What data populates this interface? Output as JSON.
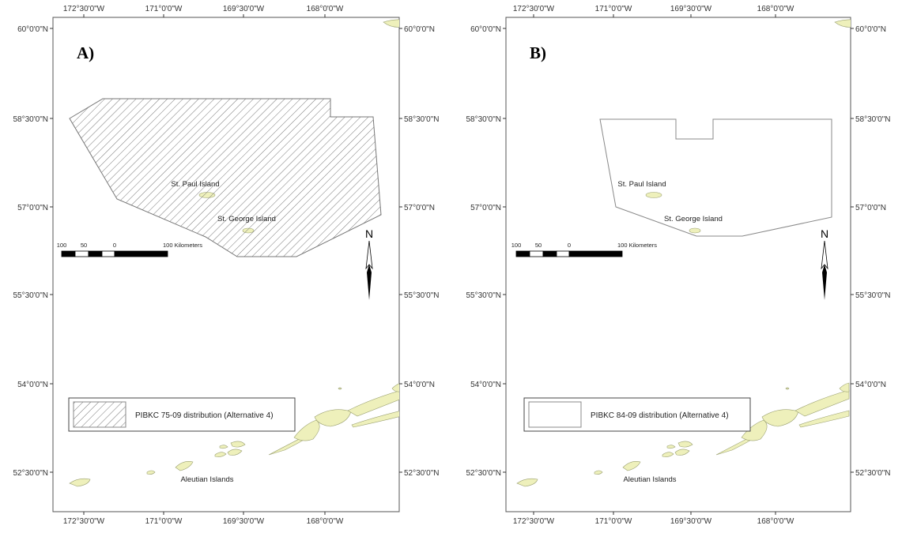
{
  "panels": [
    {
      "id": "a",
      "label": "A)",
      "legend_label": "PIBKC 75-09 distribution (Alternative 4)",
      "fill_style": "hatched"
    },
    {
      "id": "b",
      "label": "B)",
      "legend_label": "PIBKC 84-09 distribution (Alternative 4)",
      "fill_style": "outline"
    }
  ],
  "lon_ticks": [
    "172°30'0\"W",
    "171°0'0\"W",
    "169°30'0\"W",
    "168°0'0\"W"
  ],
  "lat_ticks": [
    "60°0'0\"N",
    "58°30'0\"N",
    "57°0'0\"N",
    "55°30'0\"N",
    "54°0'0\"N",
    "52°30'0\"N"
  ],
  "places": {
    "st_paul": "St. Paul Island",
    "st_george": "St. George Island",
    "aleutians": "Aleutian Islands"
  },
  "scale_bar": {
    "labels": [
      "100",
      "50",
      "0",
      "100 Kilometers"
    ]
  },
  "north_arrow": "N",
  "colors": {
    "land": "#eef0bb",
    "frame": "#555555"
  }
}
